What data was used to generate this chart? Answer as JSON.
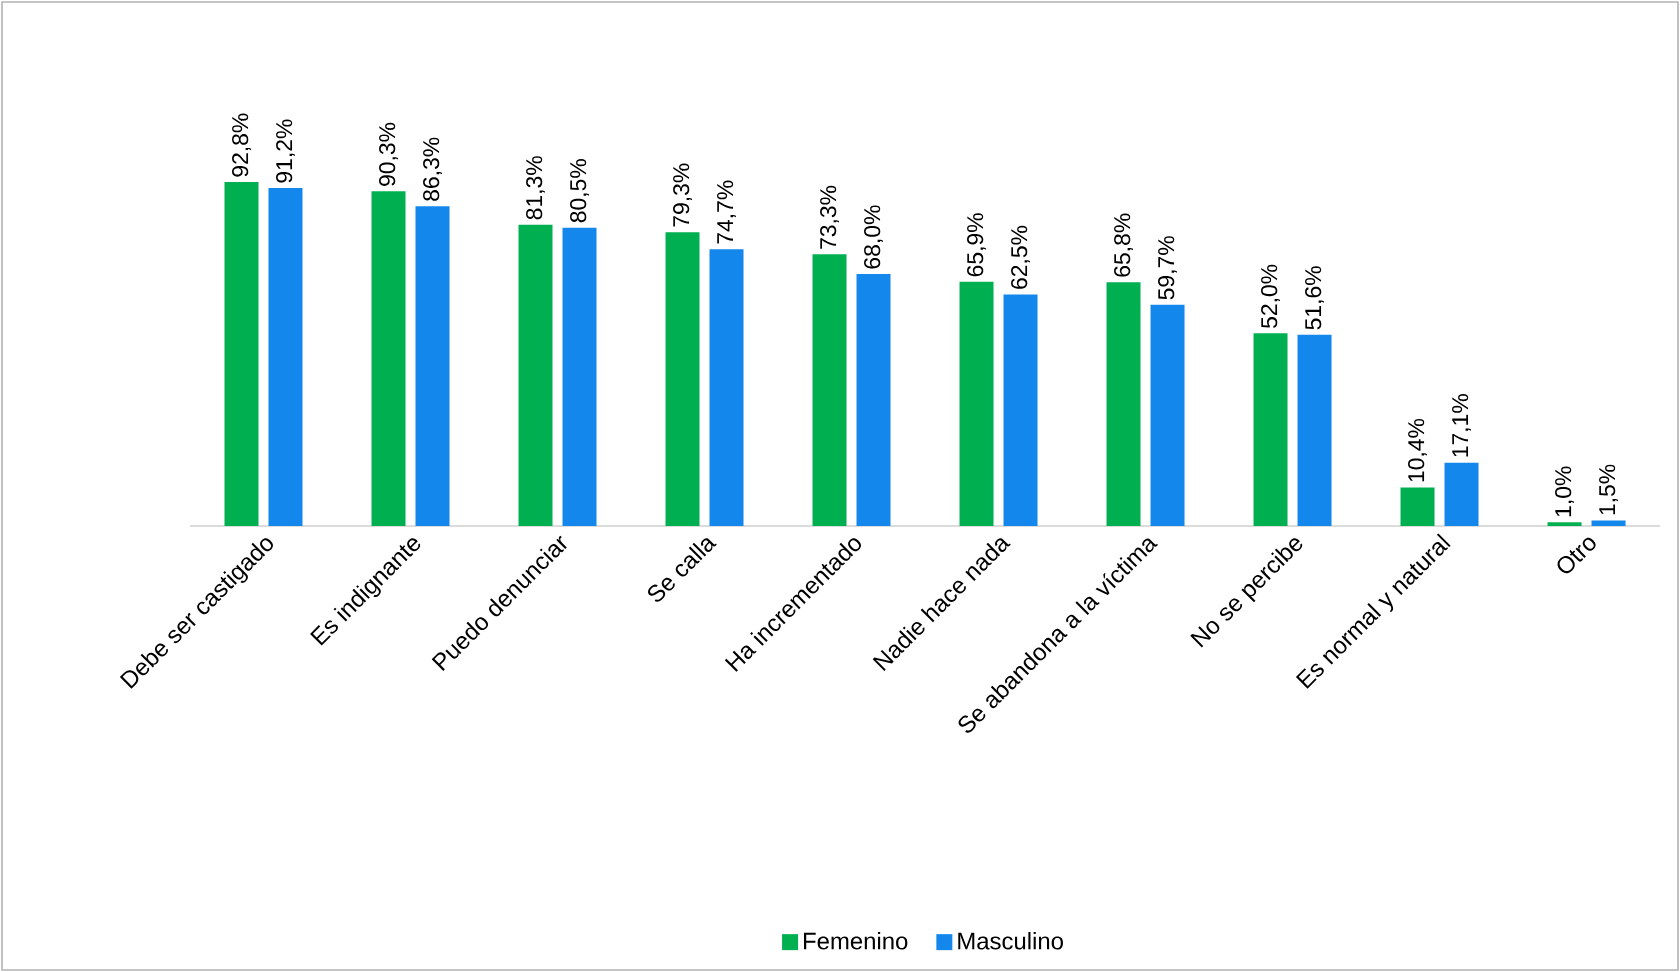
{
  "chart_data": {
    "type": "bar",
    "categories": [
      "Debe ser castigado",
      "Es indignante",
      "Puedo denunciar",
      "Se calla",
      "Ha incrementado",
      "Nadie hace nada",
      "Se abandona a la víctima",
      "No se percibe",
      "Es normal y natural",
      "Otro"
    ],
    "series": [
      {
        "name": "Femenino",
        "color": "#00b050",
        "values": [
          92.8,
          90.3,
          81.3,
          79.3,
          73.3,
          65.9,
          65.8,
          52.0,
          10.4,
          1.0
        ],
        "value_labels": [
          "92,8%",
          "90,3%",
          "81,3%",
          "79,3%",
          "73,3%",
          "65,9%",
          "65,8%",
          "52,0%",
          "10,4%",
          "1,0%"
        ]
      },
      {
        "name": "Masculino",
        "color": "#1487ec",
        "values": [
          91.2,
          86.3,
          80.5,
          74.7,
          68.0,
          62.5,
          59.7,
          51.6,
          17.1,
          1.5
        ],
        "value_labels": [
          "91,2%",
          "86,3%",
          "80,5%",
          "74,7%",
          "68,0%",
          "62,5%",
          "59,7%",
          "51,6%",
          "17,1%",
          "1,5%"
        ]
      }
    ],
    "legend": "bottom"
  }
}
